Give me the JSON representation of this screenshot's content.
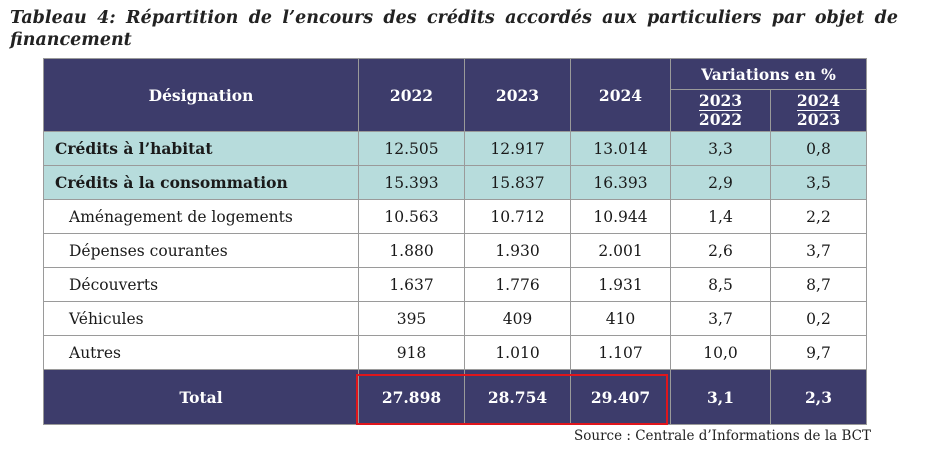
{
  "caption": {
    "line1": "Tableau 4: Répartition de l’encours des crédits accordés aux particuliers par objet de",
    "line2": "financement"
  },
  "table": {
    "header": {
      "designation": "Désignation",
      "years": [
        "2022",
        "2023",
        "2024"
      ],
      "variations": "Variations en %",
      "var1": {
        "num": "2023",
        "den": "2022"
      },
      "var2": {
        "num": "2024",
        "den": "2023"
      }
    },
    "rows": [
      {
        "label": "Crédits à l’habitat",
        "y2022": "12.505",
        "y2023": "12.917",
        "y2024": "13.014",
        "v1": "3,3",
        "v2": "0,8"
      },
      {
        "label": "Crédits à la consommation",
        "y2022": "15.393",
        "y2023": "15.837",
        "y2024": "16.393",
        "v1": "2,9",
        "v2": "3,5"
      },
      {
        "label": "Aménagement de logements",
        "y2022": "10.563",
        "y2023": "10.712",
        "y2024": "10.944",
        "v1": "1,4",
        "v2": "2,2"
      },
      {
        "label": "Dépenses courantes",
        "y2022": "1.880",
        "y2023": "1.930",
        "y2024": "2.001",
        "v1": "2,6",
        "v2": "3,7"
      },
      {
        "label": "Découverts",
        "y2022": "1.637",
        "y2023": "1.776",
        "y2024": "1.931",
        "v1": "8,5",
        "v2": "8,7"
      },
      {
        "label": "Véhicules",
        "y2022": "395",
        "y2023": "409",
        "y2024": "410",
        "v1": "3,7",
        "v2": "0,2"
      },
      {
        "label": "Autres",
        "y2022": "918",
        "y2023": "1.010",
        "y2024": "1.107",
        "v1": "10,0",
        "v2": "9,7"
      }
    ],
    "total": {
      "label": "Total",
      "y2022": "27.898",
      "y2023": "28.754",
      "y2024": "29.407",
      "v1": "3,1",
      "v2": "2,3"
    }
  },
  "source": "Source : Centrale d’Informations de la BCT",
  "colors": {
    "header_bg": "#3d3c6b",
    "highlight_row_bg": "#b7dcdc",
    "highlight_box": "#e0161c"
  }
}
